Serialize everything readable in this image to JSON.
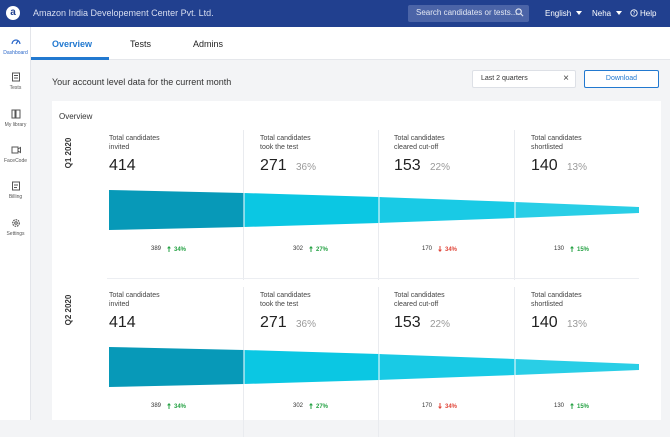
{
  "header": {
    "logo_letter": "a",
    "company": "Amazon India Developement Center Pvt. Ltd.",
    "search_placeholder": "Search candidates or tests...",
    "language": "English",
    "user": "Neha",
    "help": "Help"
  },
  "sidebar": {
    "items": [
      {
        "label": "Dashboard",
        "icon": "dashboard-icon",
        "active": true
      },
      {
        "label": "Tests",
        "icon": "tests-icon"
      },
      {
        "label": "My library",
        "icon": "library-icon"
      },
      {
        "label": "FaceCode",
        "icon": "facecode-icon"
      },
      {
        "label": "Billing",
        "icon": "billing-icon"
      },
      {
        "label": "Settings",
        "icon": "settings-icon"
      }
    ]
  },
  "tabs": [
    {
      "label": "Overview",
      "active": true
    },
    {
      "label": "Tests"
    },
    {
      "label": "Admins"
    }
  ],
  "page": {
    "heading": "Your account level data for the current month",
    "date_range": "Last 2 quarters",
    "download_label": "Download"
  },
  "overview": {
    "title": "Overview",
    "colors": {
      "up": "#25a244",
      "down": "#e0463a",
      "funnel_dark": "#0799b8",
      "funnel_light": "#0bc7e3"
    },
    "quarters": [
      {
        "label": "Q1 2020",
        "stages": [
          {
            "label_line1": "Total candidates",
            "label_line2": "invited",
            "value": "414",
            "pct": "",
            "base": "389",
            "change": "34%",
            "direction": "up"
          },
          {
            "label_line1": "Total candidates",
            "label_line2": "took the test",
            "value": "271",
            "pct": "36%",
            "base": "302",
            "change": "27%",
            "direction": "up"
          },
          {
            "label_line1": "Total candidates",
            "label_line2": "cleared cut-off",
            "value": "153",
            "pct": "22%",
            "base": "170",
            "change": "34%",
            "direction": "down"
          },
          {
            "label_line1": "Total candidates",
            "label_line2": "shortlisted",
            "value": "140",
            "pct": "13%",
            "base": "130",
            "change": "15%",
            "direction": "up"
          }
        ]
      },
      {
        "label": "Q2 2020",
        "stages": [
          {
            "label_line1": "Total candidates",
            "label_line2": "invited",
            "value": "414",
            "pct": "",
            "base": "389",
            "change": "34%",
            "direction": "up"
          },
          {
            "label_line1": "Total candidates",
            "label_line2": "took the test",
            "value": "271",
            "pct": "36%",
            "base": "302",
            "change": "27%",
            "direction": "up"
          },
          {
            "label_line1": "Total candidates",
            "label_line2": "cleared cut-off",
            "value": "153",
            "pct": "22%",
            "base": "170",
            "change": "34%",
            "direction": "down"
          },
          {
            "label_line1": "Total candidates",
            "label_line2": "shortlisted",
            "value": "140",
            "pct": "13%",
            "base": "130",
            "change": "15%",
            "direction": "up"
          }
        ]
      }
    ]
  }
}
